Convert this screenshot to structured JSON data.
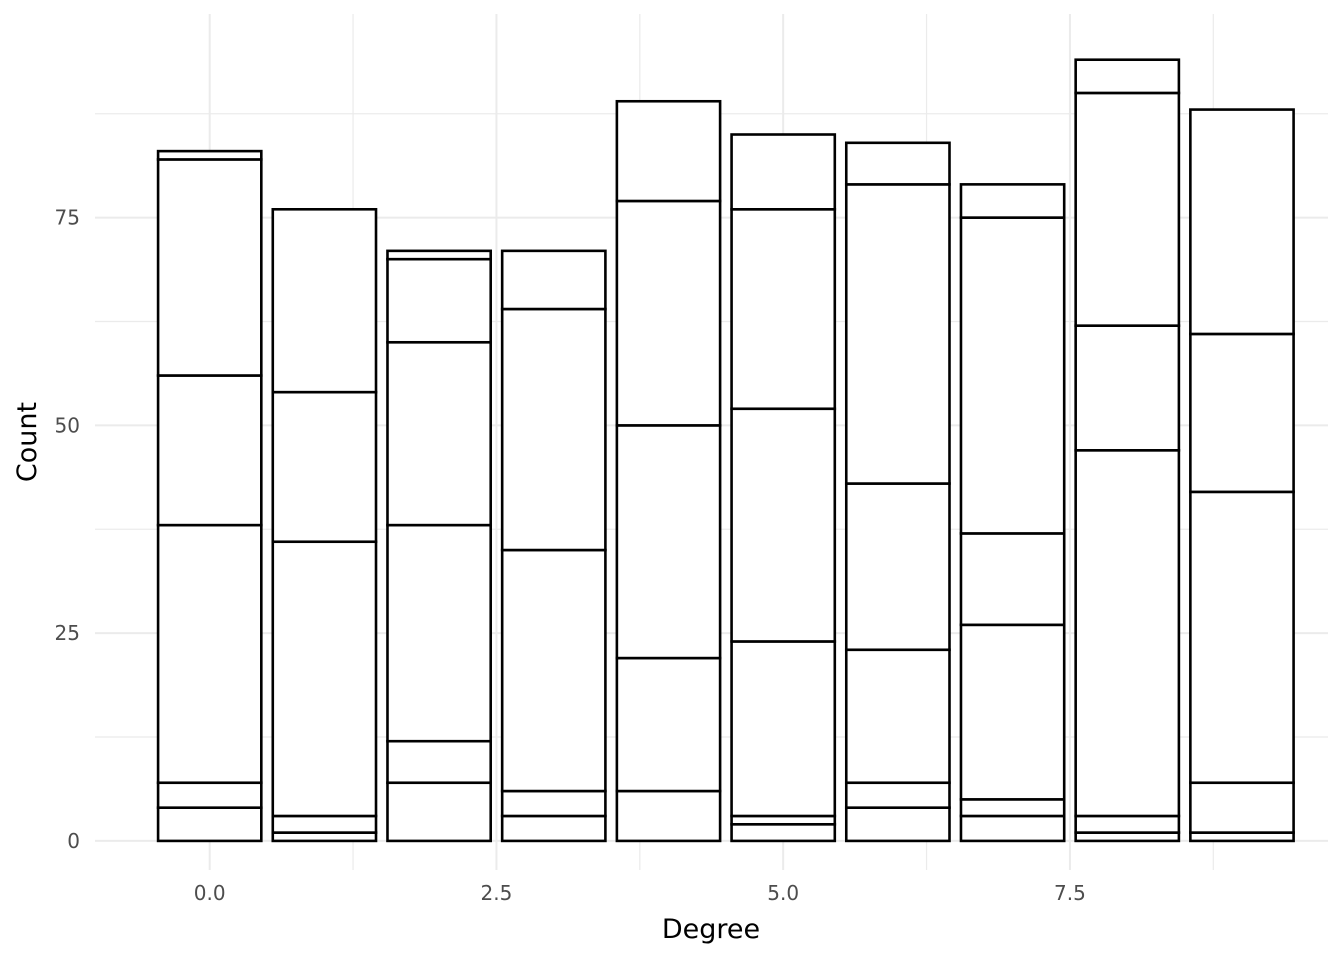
{
  "chart_data": {
    "type": "bar",
    "stacked": true,
    "xlabel": "Degree",
    "ylabel": "Count",
    "categories": [
      0,
      1,
      2,
      3,
      4,
      5,
      6,
      7,
      8,
      9
    ],
    "segment_boundaries": [
      [
        0,
        4,
        7,
        38,
        56,
        82,
        83
      ],
      [
        0,
        1,
        3,
        36,
        54,
        76
      ],
      [
        0,
        7,
        12,
        38,
        60,
        70,
        71
      ],
      [
        0,
        3,
        6,
        35,
        64,
        71
      ],
      [
        0,
        6,
        22,
        50,
        77,
        89
      ],
      [
        0,
        2,
        3,
        24,
        52,
        76,
        85
      ],
      [
        0,
        4,
        7,
        23,
        43,
        79,
        84
      ],
      [
        0,
        3,
        5,
        26,
        37,
        75,
        79
      ],
      [
        0,
        1,
        3,
        47,
        62,
        90,
        94
      ],
      [
        0,
        1,
        7,
        42,
        61,
        88
      ]
    ],
    "totals": [
      83,
      76,
      71,
      71,
      89,
      85,
      84,
      79,
      94,
      88
    ],
    "xlim": [
      -1.0,
      9.75
    ],
    "ylim": [
      -3.5,
      99.5
    ],
    "x_ticks": [
      0.0,
      2.5,
      5.0,
      7.5
    ],
    "x_tick_labels": [
      "0.0",
      "2.5",
      "5.0",
      "7.5"
    ],
    "y_ticks": [
      0,
      25,
      50,
      75
    ],
    "y_tick_labels": [
      "0",
      "25",
      "50",
      "75"
    ],
    "x_minor_ticks": [
      1.25,
      3.75,
      6.25,
      8.75
    ],
    "y_minor_ticks": [
      12.5,
      37.5,
      62.5,
      87.5
    ],
    "bar_width": 0.9,
    "grid": true,
    "legend": "none",
    "fill_color": "#ffffff",
    "stroke_color": "#000000",
    "grid_color": "#ebebeb",
    "tick_label_color": "#4d4d4d"
  }
}
